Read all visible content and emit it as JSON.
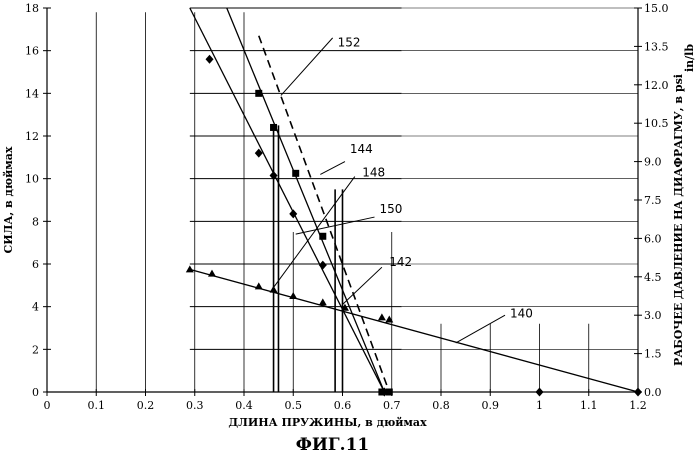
{
  "chart_data": {
    "type": "scatter",
    "caption": "ФИГ.11",
    "xlabel": "ДЛИНА ПРУЖИНЫ, в дюймах",
    "ylabel": "СИЛА, в дюймах",
    "y2label": "РАБОЧЕЕ ДАВЛЕНИЕ НА ДИАФРАГМУ, в psi",
    "y2_extra": "in/lb",
    "xlim": [
      0,
      1.2
    ],
    "ylim": [
      0,
      18
    ],
    "y2lim": [
      0,
      15
    ],
    "xticks": [
      "0",
      "0.1",
      "0.2",
      "0.3",
      "0.4",
      "0.5",
      "0.6",
      "0.7",
      "0.8",
      "0.9",
      "1",
      "1.1",
      "1.2"
    ],
    "yticks": [
      "0",
      "2",
      "4",
      "6",
      "8",
      "10",
      "12",
      "14",
      "16",
      "18"
    ],
    "y2ticks": [
      "0.0",
      "1.5",
      "3.0",
      "4.5",
      "6.0",
      "7.5",
      "9.0",
      "10.5",
      "12.0",
      "13.5",
      "15.0"
    ],
    "grid": "partial",
    "series": [
      {
        "marker": "triangle",
        "line": "solid",
        "points": [
          [
            0.29,
            5.75
          ],
          [
            0.335,
            5.55
          ],
          [
            0.43,
            4.95
          ],
          [
            0.46,
            4.8
          ],
          [
            0.5,
            4.5
          ],
          [
            0.56,
            4.2
          ],
          [
            0.605,
            3.95
          ],
          [
            0.68,
            3.5
          ],
          [
            0.695,
            3.4
          ]
        ],
        "fit": [
          [
            0.29,
            5.75
          ],
          [
            1.2,
            0
          ]
        ]
      },
      {
        "marker": "diamond",
        "line": "solid",
        "points": [
          [
            0.33,
            15.6
          ],
          [
            0.43,
            11.2
          ],
          [
            0.46,
            10.15
          ],
          [
            0.5,
            8.35
          ],
          [
            0.56,
            5.95
          ],
          [
            0.685,
            0
          ],
          [
            1.0,
            0
          ],
          [
            1.2,
            0
          ]
        ],
        "fit": [
          [
            0.29,
            18.0
          ],
          [
            0.685,
            0
          ]
        ]
      },
      {
        "marker": "square",
        "line": "solid",
        "points": [
          [
            0.43,
            14.0
          ],
          [
            0.46,
            12.4
          ],
          [
            0.505,
            10.25
          ],
          [
            0.56,
            7.3
          ],
          [
            0.68,
            0
          ],
          [
            0.695,
            0
          ]
        ],
        "fit": [
          [
            0.365,
            18.0
          ],
          [
            0.685,
            0
          ]
        ]
      },
      {
        "marker": "none",
        "line": "dashed",
        "points": [],
        "fit": [
          [
            0.43,
            16.7
          ],
          [
            0.695,
            0
          ]
        ]
      }
    ],
    "vertical_lines": [
      0.46,
      0.47,
      0.585,
      0.6
    ],
    "annotations": [
      {
        "text": "140",
        "x": 0.9,
        "y": 2.1
      },
      {
        "text": "142",
        "x": 0.62,
        "y": 3.9
      },
      {
        "text": "144",
        "x": 0.57,
        "y": 10.7
      },
      {
        "text": "148",
        "x": 0.47,
        "y": 5.0
      },
      {
        "text": "150",
        "x": 0.52,
        "y": 7.5
      },
      {
        "text": "152",
        "x": 0.48,
        "y": 13.8
      }
    ]
  }
}
